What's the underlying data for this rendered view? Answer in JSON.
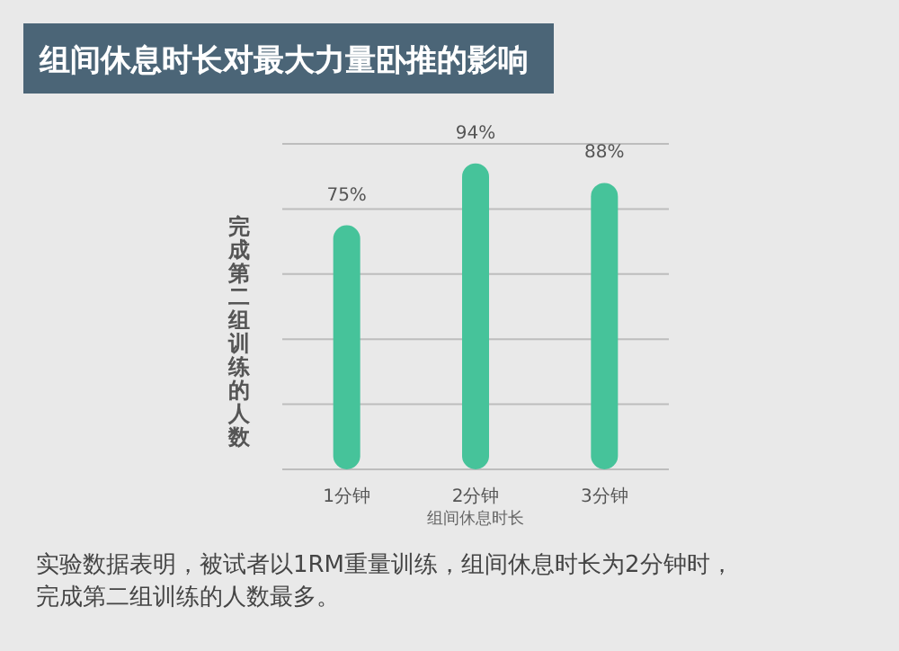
{
  "chart_data": {
    "type": "bar",
    "title": "组间休息时长对最大力量卧推的影响",
    "xlabel": "组间休息时长",
    "ylabel": "完成第二组训练的人数",
    "categories": [
      "1分钟",
      "2分钟",
      "3分钟"
    ],
    "values": [
      75,
      94,
      88
    ],
    "value_labels": [
      "75%",
      "94%",
      "88%"
    ],
    "color": "#46c39a",
    "ylim": [
      0,
      100
    ],
    "yticks": [
      {
        "value": 0,
        "label": null
      },
      {
        "value": 20,
        "label": null
      },
      {
        "value": 40,
        "label": null
      },
      {
        "value": 60,
        "label": null
      },
      {
        "value": 80,
        "label": null
      },
      {
        "value": 100,
        "label": null
      }
    ],
    "grid": "y",
    "tick_labels": "x",
    "annotations": [
      "实验数据表明，被试者以1RM重量训练，组间休息时长为2分钟时，完成第二组训练的人数最多。"
    ]
  }
}
